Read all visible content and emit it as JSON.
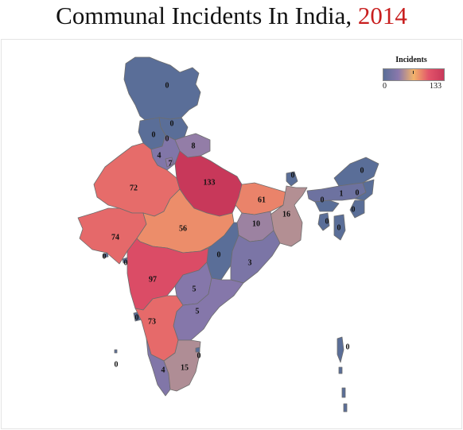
{
  "header": {
    "title_main": "Communal Incidents In India,",
    "title_year": "2014"
  },
  "legend": {
    "title": "Incidents",
    "min_label": "0",
    "max_label": "133"
  },
  "colors": {
    "low": "#5a6e98",
    "mid_low": "#8b78ac",
    "mid": "#f2b36a",
    "high": "#e2546a",
    "max": "#c8385a"
  },
  "states": [
    {
      "id": "jammu-kashmir",
      "value": 0
    },
    {
      "id": "himachal-pradesh",
      "value": 0
    },
    {
      "id": "punjab",
      "value": 0
    },
    {
      "id": "chandigarh",
      "value": 0
    },
    {
      "id": "uttarakhand",
      "value": 8
    },
    {
      "id": "haryana",
      "value": 4
    },
    {
      "id": "delhi",
      "value": 7
    },
    {
      "id": "rajasthan",
      "value": 72
    },
    {
      "id": "uttar-pradesh",
      "value": 133
    },
    {
      "id": "bihar",
      "value": 61
    },
    {
      "id": "sikkim",
      "value": 0
    },
    {
      "id": "arunachal-pradesh",
      "value": 0
    },
    {
      "id": "assam",
      "value": 1
    },
    {
      "id": "nagaland",
      "value": 0
    },
    {
      "id": "meghalaya",
      "value": 0
    },
    {
      "id": "manipur",
      "value": 0
    },
    {
      "id": "tripura",
      "value": 0
    },
    {
      "id": "mizoram",
      "value": 0
    },
    {
      "id": "west-bengal",
      "value": 16
    },
    {
      "id": "jharkhand",
      "value": 10
    },
    {
      "id": "gujarat",
      "value": 74
    },
    {
      "id": "daman-diu",
      "value": 0
    },
    {
      "id": "dadra-nagar-haveli",
      "value": 0
    },
    {
      "id": "madhya-pradesh",
      "value": 56
    },
    {
      "id": "chhattisgarh",
      "value": 0
    },
    {
      "id": "odisha",
      "value": 3
    },
    {
      "id": "maharashtra",
      "value": 97
    },
    {
      "id": "telangana",
      "value": 5
    },
    {
      "id": "andhra-pradesh",
      "value": 5
    },
    {
      "id": "goa",
      "value": 0
    },
    {
      "id": "karnataka",
      "value": 73
    },
    {
      "id": "kerala",
      "value": 4
    },
    {
      "id": "tamil-nadu",
      "value": 15
    },
    {
      "id": "puducherry",
      "value": 0
    },
    {
      "id": "andaman-nicobar",
      "value": 0
    },
    {
      "id": "lakshadweep",
      "value": 0
    }
  ]
}
